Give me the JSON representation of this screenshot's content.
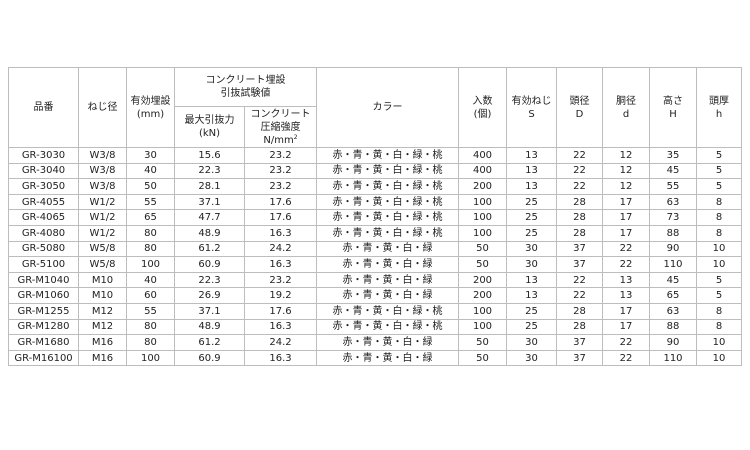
{
  "headers": {
    "part_no": "品番",
    "thread": "ねじ径",
    "embed_depth": "有効埋設",
    "embed_depth_unit": "(mm)",
    "pullout_group_line1": "コンクリート埋設",
    "pullout_group_line2": "引抜試験値",
    "max_pullout": "最大引抜力",
    "max_pullout_unit": "(kN)",
    "concrete_line1": "コンクリート",
    "concrete_line2": "圧縮強度",
    "concrete_unit": "N/mm",
    "concrete_unit_sup": "2",
    "color": "カラー",
    "qty": "入数",
    "qty_unit": "(個)",
    "eff_thread": "有効ねじ",
    "eff_thread_sym": "S",
    "head_dia": "頭径",
    "head_dia_sym": "D",
    "body_dia": "胴径",
    "body_dia_sym": "d",
    "height": "高さ",
    "height_sym": "H",
    "head_thick": "頭厚",
    "head_thick_sym": "h"
  },
  "rows": [
    [
      "GR-3030",
      "W3/8",
      "30",
      "15.6",
      "23.2",
      "赤・青・黄・白・緑・桃",
      "400",
      "13",
      "22",
      "12",
      "35",
      "5"
    ],
    [
      "GR-3040",
      "W3/8",
      "40",
      "22.3",
      "23.2",
      "赤・青・黄・白・緑・桃",
      "400",
      "13",
      "22",
      "12",
      "45",
      "5"
    ],
    [
      "GR-3050",
      "W3/8",
      "50",
      "28.1",
      "23.2",
      "赤・青・黄・白・緑・桃",
      "200",
      "13",
      "22",
      "12",
      "55",
      "5"
    ],
    [
      "GR-4055",
      "W1/2",
      "55",
      "37.1",
      "17.6",
      "赤・青・黄・白・緑・桃",
      "100",
      "25",
      "28",
      "17",
      "63",
      "8"
    ],
    [
      "GR-4065",
      "W1/2",
      "65",
      "47.7",
      "17.6",
      "赤・青・黄・白・緑・桃",
      "100",
      "25",
      "28",
      "17",
      "73",
      "8"
    ],
    [
      "GR-4080",
      "W1/2",
      "80",
      "48.9",
      "16.3",
      "赤・青・黄・白・緑・桃",
      "100",
      "25",
      "28",
      "17",
      "88",
      "8"
    ],
    [
      "GR-5080",
      "W5/8",
      "80",
      "61.2",
      "24.2",
      "赤・青・黄・白・緑",
      "50",
      "30",
      "37",
      "22",
      "90",
      "10"
    ],
    [
      "GR-5100",
      "W5/8",
      "100",
      "60.9",
      "16.3",
      "赤・青・黄・白・緑",
      "50",
      "30",
      "37",
      "22",
      "110",
      "10"
    ],
    [
      "GR-M1040",
      "M10",
      "40",
      "22.3",
      "23.2",
      "赤・青・黄・白・緑",
      "200",
      "13",
      "22",
      "13",
      "45",
      "5"
    ],
    [
      "GR-M1060",
      "M10",
      "60",
      "26.9",
      "19.2",
      "赤・青・黄・白・緑",
      "200",
      "13",
      "22",
      "13",
      "65",
      "5"
    ],
    [
      "GR-M1255",
      "M12",
      "55",
      "37.1",
      "17.6",
      "赤・青・黄・白・緑・桃",
      "100",
      "25",
      "28",
      "17",
      "63",
      "8"
    ],
    [
      "GR-M1280",
      "M12",
      "80",
      "48.9",
      "16.3",
      "赤・青・黄・白・緑・桃",
      "100",
      "25",
      "28",
      "17",
      "88",
      "8"
    ],
    [
      "GR-M1680",
      "M16",
      "80",
      "61.2",
      "24.2",
      "赤・青・黄・白・緑",
      "50",
      "30",
      "37",
      "22",
      "90",
      "10"
    ],
    [
      "GR-M16100",
      "M16",
      "100",
      "60.9",
      "16.3",
      "赤・青・黄・白・緑",
      "50",
      "30",
      "37",
      "22",
      "110",
      "10"
    ]
  ]
}
